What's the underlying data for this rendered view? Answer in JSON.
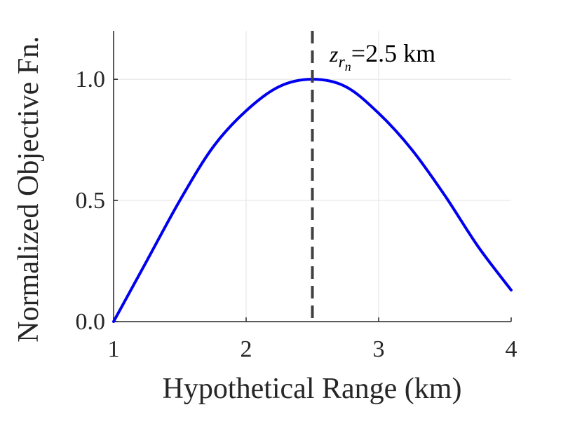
{
  "chart_data": {
    "type": "line",
    "title": "",
    "xlabel": "Hypothetical Range (km)",
    "ylabel": "Normalized Objective Fn.",
    "xlim": [
      1,
      4
    ],
    "ylim": [
      0,
      1.2
    ],
    "xticks": [
      1,
      2,
      3,
      4
    ],
    "xtick_labels": [
      "1",
      "2",
      "3",
      "4"
    ],
    "yticks": [
      0.0,
      0.5,
      1.0
    ],
    "ytick_labels": [
      "0.0",
      "0.5",
      "1.0"
    ],
    "grid": true,
    "series": [
      {
        "color": "#0000ee",
        "x": [
          1.0,
          1.25,
          1.5,
          1.75,
          2.0,
          2.25,
          2.5,
          2.75,
          3.0,
          3.25,
          3.5,
          3.75,
          4.0
        ],
        "y": [
          0.0,
          0.25,
          0.5,
          0.72,
          0.87,
          0.97,
          1.0,
          0.97,
          0.86,
          0.71,
          0.52,
          0.31,
          0.13
        ]
      }
    ],
    "annotations": [
      {
        "type": "vline",
        "x": 2.5,
        "style": "dashed",
        "color": "#404040",
        "label_var": "z",
        "label_sub": "r",
        "label_subsub": "n",
        "label_eq": "=",
        "label_value": "2.5 km"
      }
    ]
  }
}
